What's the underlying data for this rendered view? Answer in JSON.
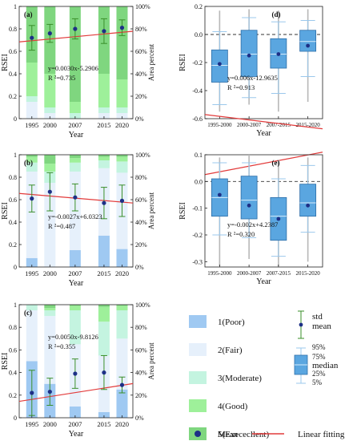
{
  "chart_data": [
    {
      "id": "a",
      "type": "bar+scatter",
      "panel_label": "(a)",
      "categories": [
        "1995",
        "2000",
        "2007",
        "2015",
        "2020"
      ],
      "xlabel": "Year",
      "ylabel": "RSEI",
      "y2label": "Area percent",
      "y2_ticks": [
        "0%",
        "20%",
        "40%",
        "60%",
        "80%",
        "100%"
      ],
      "stack_percent": [
        [
          0,
          15,
          5,
          30,
          50
        ],
        [
          0,
          5,
          5,
          30,
          60
        ],
        [
          0,
          0,
          5,
          10,
          85
        ],
        [
          0,
          5,
          5,
          30,
          60
        ],
        [
          0,
          5,
          5,
          25,
          65
        ]
      ],
      "mean": [
        0.72,
        0.76,
        0.8,
        0.78,
        0.81
      ],
      "std": [
        0.11,
        0.08,
        0.09,
        0.11,
        0.07
      ],
      "fit": {
        "slope": 0.003,
        "intercept": -5.2906
      },
      "equation": "y=0.0030x-5.2906",
      "r2": "R ²=0.735"
    },
    {
      "id": "b",
      "type": "bar+scatter",
      "panel_label": "(b)",
      "categories": [
        "1995",
        "2000",
        "2007",
        "2015",
        "2020"
      ],
      "xlabel": "Year",
      "ylabel": "RSEI",
      "y2label": "Area percent",
      "y2_ticks": [
        "0%",
        "20%",
        "40%",
        "60%",
        "80%",
        "100%"
      ],
      "stack_percent": [
        [
          8,
          77,
          8,
          5,
          2
        ],
        [
          0,
          75,
          10,
          7,
          8
        ],
        [
          15,
          70,
          8,
          4,
          3
        ],
        [
          28,
          60,
          7,
          3,
          2
        ],
        [
          16,
          68,
          10,
          4,
          2
        ]
      ],
      "mean": [
        0.61,
        0.67,
        0.62,
        0.57,
        0.59
      ],
      "std": [
        0.12,
        0.17,
        0.12,
        0.14,
        0.14
      ],
      "fit": {
        "slope": -0.0027,
        "intercept": 6.0323
      },
      "equation": "y=-0.0027x+6.0323",
      "r2": "R ²=0.487"
    },
    {
      "id": "c",
      "type": "bar+scatter",
      "panel_label": "(c)",
      "categories": [
        "1995",
        "2000",
        "2007",
        "2015",
        "2020"
      ],
      "xlabel": "Year",
      "ylabel": "RSEI",
      "y2label": "Area percent",
      "y2_ticks": [
        "0%",
        "20%",
        "40%",
        "60%",
        "80%",
        "100%"
      ],
      "stack_percent": [
        [
          50,
          45,
          5,
          0,
          0
        ],
        [
          30,
          60,
          5,
          2,
          3
        ],
        [
          10,
          55,
          30,
          4,
          1
        ],
        [
          5,
          50,
          30,
          13,
          2
        ],
        [
          25,
          45,
          25,
          4,
          1
        ]
      ],
      "mean": [
        0.22,
        0.23,
        0.39,
        0.4,
        0.29
      ],
      "std": [
        0.2,
        0.12,
        0.13,
        0.15,
        0.07
      ],
      "fit": {
        "slope": 0.005,
        "intercept": -9.8126
      },
      "equation": "y=0.0050x-9.8126",
      "r2": "R ²=0.355"
    },
    {
      "id": "d",
      "type": "box",
      "panel_label": "(d)",
      "categories": [
        "1995-2000",
        "2000-2007",
        "2007-2015",
        "2015-2020"
      ],
      "xlabel": "Year",
      "ylabel": "RSEI",
      "ylim": [
        -0.6,
        0.2
      ],
      "yticks": [
        "-0.6",
        "-0.4",
        "-0.2",
        "0.0",
        "0.2"
      ],
      "boxes": [
        {
          "p5": -0.5,
          "p25": -0.34,
          "median": -0.22,
          "p75": -0.11,
          "p95": 0.02,
          "min": -0.55,
          "max": 0.17,
          "mean": -0.21
        },
        {
          "p5": -0.45,
          "p25": -0.3,
          "median": -0.14,
          "p75": 0.03,
          "p95": 0.12,
          "min": -0.5,
          "max": 0.18,
          "mean": -0.15
        },
        {
          "p5": -0.42,
          "p25": -0.24,
          "median": -0.14,
          "p75": -0.03,
          "p95": 0.09,
          "min": -0.55,
          "max": 0.17,
          "mean": -0.14
        },
        {
          "p5": -0.3,
          "p25": -0.12,
          "median": -0.05,
          "p75": 0.03,
          "p95": 0.1,
          "min": -0.48,
          "max": 0.18,
          "mean": -0.08
        }
      ],
      "fit": {
        "slope": 0.006,
        "intercept": -12.9635
      },
      "equation": "y=0.006x-12.9635",
      "r2": "R ²=0.913"
    },
    {
      "id": "e",
      "type": "box",
      "panel_label": "(e)",
      "categories": [
        "1995-2000",
        "2000-2007",
        "2007-2015",
        "2015-2020"
      ],
      "xlabel": "Year",
      "ylabel": "RSEI",
      "ylim": [
        -0.32,
        0.1
      ],
      "yticks": [
        "-0.3",
        "-0.2",
        "-0.1",
        "0.0",
        "0.1"
      ],
      "boxes": [
        {
          "p5": -0.2,
          "p25": -0.13,
          "median": -0.06,
          "p75": 0.01,
          "p95": 0.07,
          "min": -0.32,
          "max": 0.09,
          "mean": -0.05
        },
        {
          "p5": -0.21,
          "p25": -0.14,
          "median": -0.07,
          "p75": 0.02,
          "p95": 0.07,
          "min": -0.29,
          "max": 0.1,
          "mean": -0.09
        },
        {
          "p5": -0.28,
          "p25": -0.22,
          "median": -0.13,
          "p75": -0.06,
          "p95": 0.01,
          "min": -0.32,
          "max": 0.08,
          "mean": -0.14
        },
        {
          "p5": -0.19,
          "p25": -0.13,
          "median": -0.08,
          "p75": -0.01,
          "p95": 0.06,
          "min": -0.3,
          "max": 0.09,
          "mean": -0.09
        }
      ],
      "fit": {
        "slope": -0.002,
        "intercept": 4.2387
      },
      "equation": "y=-0.002x+4.2387",
      "r2": "R ²=0.320"
    }
  ],
  "legend": {
    "classes": [
      {
        "label": "1(Poor)",
        "color": "#9fc9f2"
      },
      {
        "label": "2(Fair)",
        "color": "#e6f0fb"
      },
      {
        "label": "3(Moderate)",
        "color": "#c4f4e0"
      },
      {
        "label": "4(Good)",
        "color": "#9ef09a"
      },
      {
        "label": "5(Exececllent)",
        "color": "#7fd67f"
      }
    ],
    "mean_label": "Mean",
    "fit_label": "Linear fitting",
    "std_label": "std",
    "std_mean_label": "mean",
    "box_labels": [
      "95%",
      "75%",
      "median",
      "25%",
      "5%"
    ]
  },
  "colors": {
    "fit_line": "#e23b3b",
    "mean_dot": "#1d2f86",
    "errorbar": "#3a8f2a",
    "box_fill": "#5aa6e0",
    "box_edge": "#2d6ea8",
    "whisker": "#9bc8ec",
    "range_line": "#b8b8b8"
  }
}
